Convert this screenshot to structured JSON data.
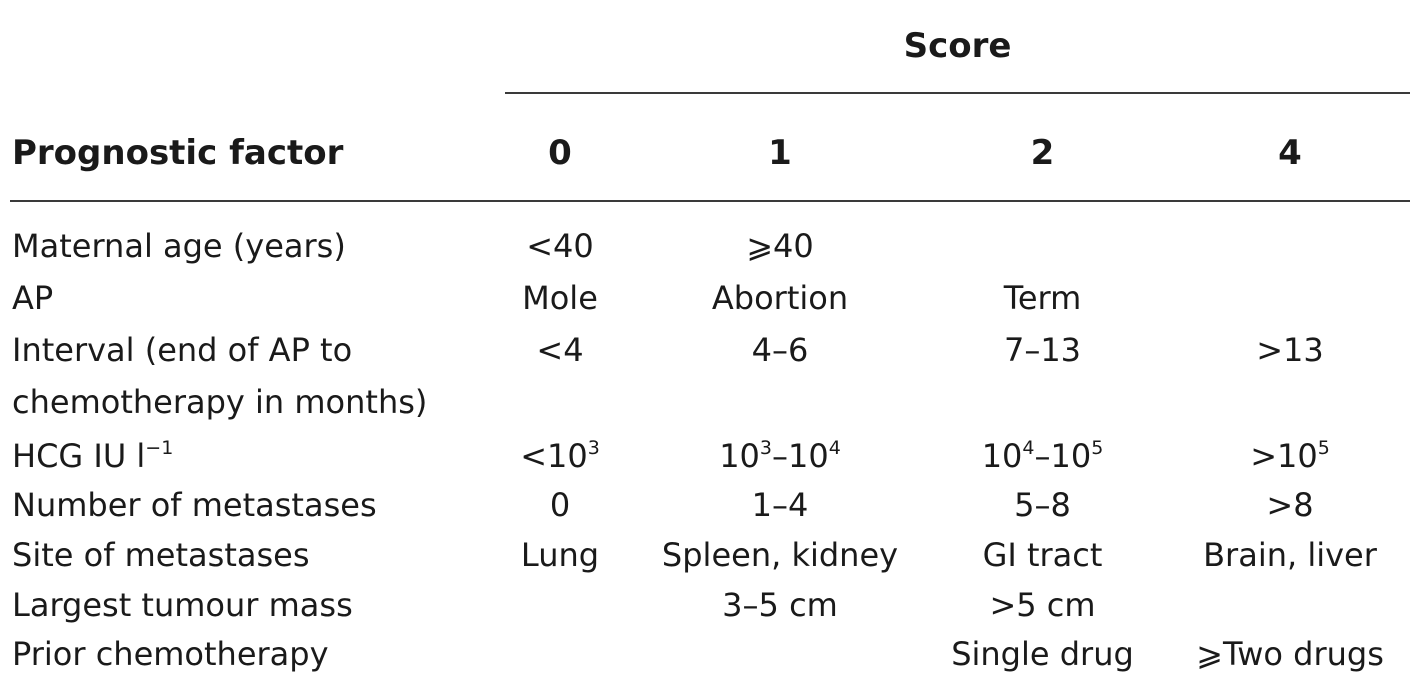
{
  "score_header": "Score",
  "column_headers": {
    "factor": "Prognostic factor",
    "s0": "0",
    "s1": "1",
    "s2": "2",
    "s4": "4"
  },
  "rows": [
    {
      "factor": "Maternal age (years)",
      "s0": "<40",
      "s1": "⩾40",
      "s2": "",
      "s4": ""
    },
    {
      "factor": "AP",
      "s0": "Mole",
      "s1": "Abortion",
      "s2": "Term",
      "s4": ""
    },
    {
      "factor": "Interval (end of AP to",
      "s0": "<4",
      "s1": "4–6",
      "s2": "7–13",
      "s4": ">13"
    },
    {
      "factor": "chemotherapy in months)",
      "s0": "",
      "s1": "",
      "s2": "",
      "s4": ""
    },
    {
      "factor": "HCG IU l",
      "factor_sup": "−1",
      "s0": "<10",
      "s0_sup": "3",
      "s1_a": "10",
      "s1_a_sup": "3",
      "s1_b": "–10",
      "s1_b_sup": "4",
      "s2_a": "10",
      "s2_a_sup": "4",
      "s2_b": "–10",
      "s2_b_sup": "5",
      "s4": ">10",
      "s4_sup": "5"
    },
    {
      "factor": "Number of metastases",
      "s0": "0",
      "s1": "1–4",
      "s2": "5–8",
      "s4": ">8"
    },
    {
      "factor": "Site of metastases",
      "s0": "Lung",
      "s1": "Spleen, kidney",
      "s2": "GI tract",
      "s4": "Brain, liver"
    },
    {
      "factor": "Largest tumour mass",
      "s0": "",
      "s1": "3–5 cm",
      "s2": ">5 cm",
      "s4": ""
    },
    {
      "factor": "Prior chemotherapy",
      "s0": "",
      "s1": "",
      "s2": "Single drug",
      "s4": "⩾Two drugs"
    }
  ]
}
